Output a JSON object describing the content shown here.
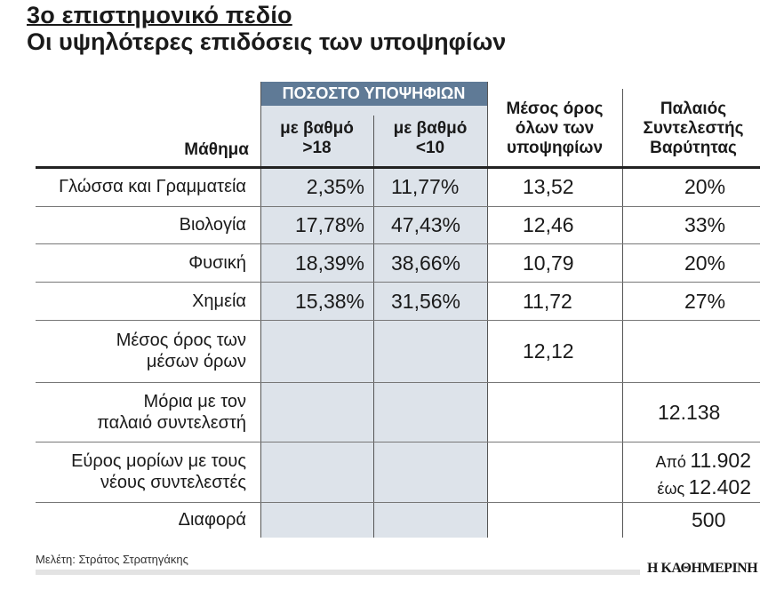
{
  "title": "3ο επιστημονικό πεδίο",
  "subtitle": "Οι υψηλότερες επιδόσεις των υποψηφίων",
  "headers": {
    "group": "ΠΟΣΟΣΤΟ ΥΠΟΨΗΦΙΩΝ",
    "subject": "Μάθημα",
    "gt18": [
      "με βαθμό",
      ">18"
    ],
    "lt10": [
      "με βαθμό",
      "<10"
    ],
    "avg": [
      "Μέσος όρος",
      "όλων των",
      "υποψηφίων"
    ],
    "coef": [
      "Παλαιός",
      "Συντελεστής",
      "Βαρύτητας"
    ]
  },
  "rows": [
    {
      "subject": "Γλώσσα και Γραμματεία",
      "gt18": "2,35%",
      "lt10": "11,77%",
      "avg": "13,52",
      "coef": "20%"
    },
    {
      "subject": "Βιολογία",
      "gt18": "17,78%",
      "lt10": "47,43%",
      "avg": "12,46",
      "coef": "33%"
    },
    {
      "subject": "Φυσική",
      "gt18": "18,39%",
      "lt10": "38,66%",
      "avg": "10,79",
      "coef": "20%"
    },
    {
      "subject": "Χημεία",
      "gt18": "15,38%",
      "lt10": "31,56%",
      "avg": "11,72",
      "coef": "27%"
    }
  ],
  "summary": {
    "avg_of_avgs": {
      "label": [
        "Μέσος όρος των",
        "μέσων όρων"
      ],
      "value": "12,12"
    },
    "old_points": {
      "label": [
        "Μόρια με τον",
        "παλαιό συντελεστή"
      ],
      "value": "12.138"
    },
    "range": {
      "label": [
        "Εύρος μορίων με τους",
        "νέους συντελεστές"
      ],
      "from_word": "Από",
      "from": "11.902",
      "to_word": "έως",
      "to": "12.402"
    },
    "diff": {
      "label": "Διαφορά",
      "value": "500"
    }
  },
  "footer": {
    "credit": "Μελέτη: Στράτος Στρατηγάκης",
    "logo": "Η ΚΑΘΗΜΕΡΙΝΗ"
  },
  "colors": {
    "band": "#5f7a96",
    "shade": "#dde3ea"
  }
}
